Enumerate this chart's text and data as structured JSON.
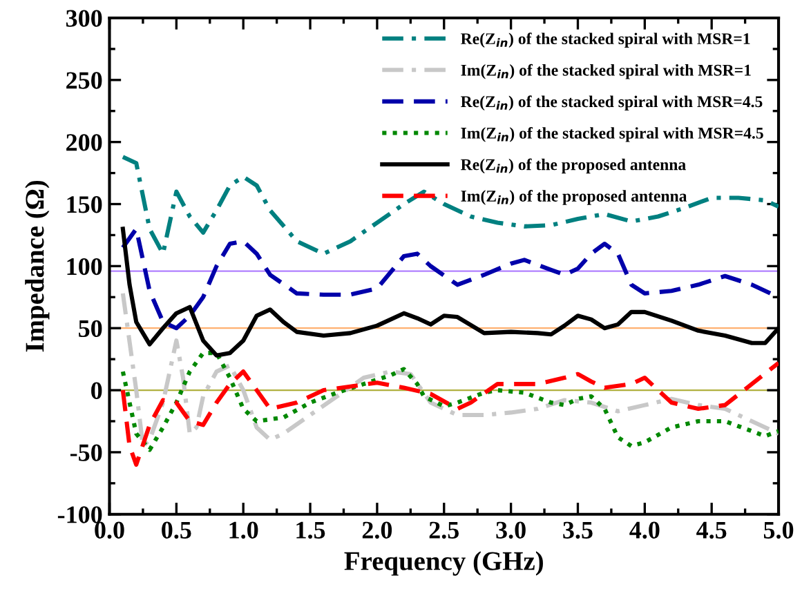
{
  "chart_data": {
    "type": "line",
    "xlabel": "Frequency (GHz)",
    "ylabel": "Impedance (Ω)",
    "xlim": [
      0,
      5
    ],
    "ylim": [
      -100,
      300
    ],
    "xticks": [
      {
        "value": 0,
        "label": "0.0"
      },
      0.5,
      {
        "value": 1,
        "label": "1.0"
      },
      1.5,
      {
        "value": 2,
        "label": "2.0"
      },
      2.5,
      {
        "value": 3,
        "label": "3.0"
      },
      3.5,
      {
        "value": 4,
        "label": "4.0"
      },
      4.5,
      {
        "value": 5,
        "label": "5.0"
      }
    ],
    "yticks": [
      -100,
      -50,
      0,
      50,
      100,
      150,
      200,
      250,
      300
    ],
    "grid": false,
    "legend": "top right",
    "ref_lines": [
      {
        "axis": "y",
        "value": 96,
        "color": "#b080ff"
      },
      {
        "axis": "y",
        "value": 50,
        "color": "#ffb070"
      },
      {
        "axis": "y",
        "value": 0,
        "color": "#b0b040"
      }
    ],
    "series": [
      {
        "name": "Re(Z$_{in}$) of the stacked spiral with MSR=1",
        "color": "#008080",
        "line_style": "dashdot",
        "x": [
          0.1,
          0.2,
          0.3,
          0.4,
          0.5,
          0.6,
          0.7,
          0.8,
          0.9,
          1.0,
          1.1,
          1.2,
          1.4,
          1.6,
          1.8,
          2.0,
          2.2,
          2.35,
          2.5,
          2.7,
          2.9,
          3.1,
          3.3,
          3.5,
          3.7,
          3.9,
          4.1,
          4.3,
          4.5,
          4.7,
          4.9,
          5.0
        ],
        "values": [
          188,
          183,
          130,
          110,
          160,
          140,
          127,
          145,
          165,
          172,
          165,
          145,
          120,
          110,
          120,
          135,
          150,
          160,
          150,
          140,
          135,
          132,
          133,
          138,
          142,
          136,
          140,
          147,
          155,
          155,
          153,
          148
        ]
      },
      {
        "name": "Im(Z$_{in}$) of the stacked spiral with MSR=1",
        "color": "#c8c8c8",
        "line_style": "dashdot",
        "x": [
          0.1,
          0.2,
          0.25,
          0.3,
          0.4,
          0.5,
          0.55,
          0.6,
          0.65,
          0.7,
          0.8,
          0.9,
          1.0,
          1.1,
          1.2,
          1.3,
          1.5,
          1.7,
          1.9,
          2.1,
          2.25,
          2.4,
          2.6,
          2.8,
          3.0,
          3.2,
          3.4,
          3.6,
          3.8,
          4.0,
          4.2,
          4.4,
          4.6,
          4.8,
          5.0
        ],
        "values": [
          78,
          0,
          -45,
          -40,
          -10,
          40,
          10,
          -35,
          -30,
          -5,
          15,
          20,
          0,
          -30,
          -40,
          -35,
          -20,
          -5,
          10,
          15,
          13,
          -10,
          -20,
          -20,
          -18,
          -15,
          -8,
          -10,
          -17,
          -12,
          -7,
          -12,
          -15,
          -25,
          -35
        ]
      },
      {
        "name": "Re(Z$_{in}$) of the stacked spiral with MSR=4.5",
        "color": "#0000aa",
        "line_style": "dashed",
        "x": [
          0.1,
          0.2,
          0.3,
          0.4,
          0.5,
          0.6,
          0.7,
          0.8,
          0.9,
          1.0,
          1.1,
          1.2,
          1.4,
          1.6,
          1.8,
          2.0,
          2.2,
          2.3,
          2.4,
          2.6,
          2.8,
          3.0,
          3.1,
          3.3,
          3.4,
          3.5,
          3.6,
          3.7,
          3.8,
          3.9,
          4.0,
          4.2,
          4.4,
          4.6,
          4.8,
          5.0
        ],
        "values": [
          115,
          130,
          80,
          55,
          50,
          60,
          75,
          100,
          118,
          120,
          110,
          93,
          78,
          77,
          77,
          82,
          108,
          110,
          100,
          85,
          93,
          102,
          105,
          97,
          93,
          98,
          110,
          118,
          110,
          85,
          78,
          80,
          85,
          92,
          85,
          75
        ]
      },
      {
        "name": "Im(Z$_{in}$) of the stacked spiral with MSR=4.5",
        "color": "#008800",
        "line_style": "dotted",
        "x": [
          0.1,
          0.15,
          0.2,
          0.3,
          0.4,
          0.5,
          0.6,
          0.7,
          0.8,
          0.9,
          1.0,
          1.1,
          1.3,
          1.5,
          1.7,
          1.9,
          2.1,
          2.2,
          2.3,
          2.35,
          2.5,
          2.6,
          2.8,
          2.9,
          3.1,
          3.3,
          3.4,
          3.5,
          3.6,
          3.7,
          3.8,
          3.9,
          4.0,
          4.2,
          4.4,
          4.6,
          4.8,
          4.9,
          5.0
        ],
        "values": [
          15,
          -10,
          -35,
          -48,
          -30,
          -10,
          15,
          30,
          30,
          10,
          -15,
          -25,
          -22,
          -10,
          -2,
          5,
          12,
          17,
          5,
          -5,
          -13,
          -10,
          -2,
          0,
          -2,
          -10,
          -12,
          -7,
          -5,
          -15,
          -38,
          -45,
          -42,
          -30,
          -25,
          -25,
          -33,
          -37,
          -33
        ]
      },
      {
        "name": "Re(Z$_{in}$) of the proposed antenna",
        "color": "#000000",
        "line_style": "solid",
        "x": [
          0.1,
          0.15,
          0.2,
          0.3,
          0.4,
          0.5,
          0.6,
          0.7,
          0.8,
          0.9,
          1.0,
          1.1,
          1.2,
          1.3,
          1.4,
          1.6,
          1.8,
          2.0,
          2.2,
          2.3,
          2.4,
          2.5,
          2.6,
          2.8,
          3.0,
          3.2,
          3.3,
          3.4,
          3.5,
          3.6,
          3.7,
          3.8,
          3.9,
          4.0,
          4.2,
          4.4,
          4.6,
          4.8,
          4.9,
          5.0
        ],
        "values": [
          130,
          85,
          55,
          37,
          50,
          62,
          67,
          40,
          28,
          30,
          40,
          60,
          65,
          55,
          47,
          44,
          46,
          52,
          62,
          58,
          53,
          60,
          59,
          46,
          47,
          46,
          45,
          52,
          60,
          57,
          50,
          53,
          63,
          63,
          56,
          48,
          44,
          38,
          38,
          50
        ]
      },
      {
        "name": "Im(Z$_{in}$) of the proposed antenna",
        "color": "#ff0000",
        "line_style": "dashed",
        "x": [
          0.1,
          0.15,
          0.2,
          0.3,
          0.4,
          0.5,
          0.6,
          0.7,
          0.8,
          0.9,
          1.0,
          1.1,
          1.2,
          1.4,
          1.6,
          1.8,
          2.0,
          2.2,
          2.4,
          2.6,
          2.7,
          2.9,
          3.2,
          3.4,
          3.5,
          3.6,
          3.7,
          3.9,
          4.0,
          4.2,
          4.4,
          4.6,
          4.8,
          5.0
        ],
        "values": [
          0,
          -45,
          -60,
          -28,
          -8,
          -10,
          -25,
          -28,
          -10,
          5,
          15,
          0,
          -15,
          -10,
          0,
          3,
          6,
          2,
          -3,
          -15,
          -10,
          5,
          5,
          10,
          13,
          7,
          2,
          5,
          10,
          -10,
          -15,
          -12,
          5,
          22
        ]
      }
    ]
  }
}
